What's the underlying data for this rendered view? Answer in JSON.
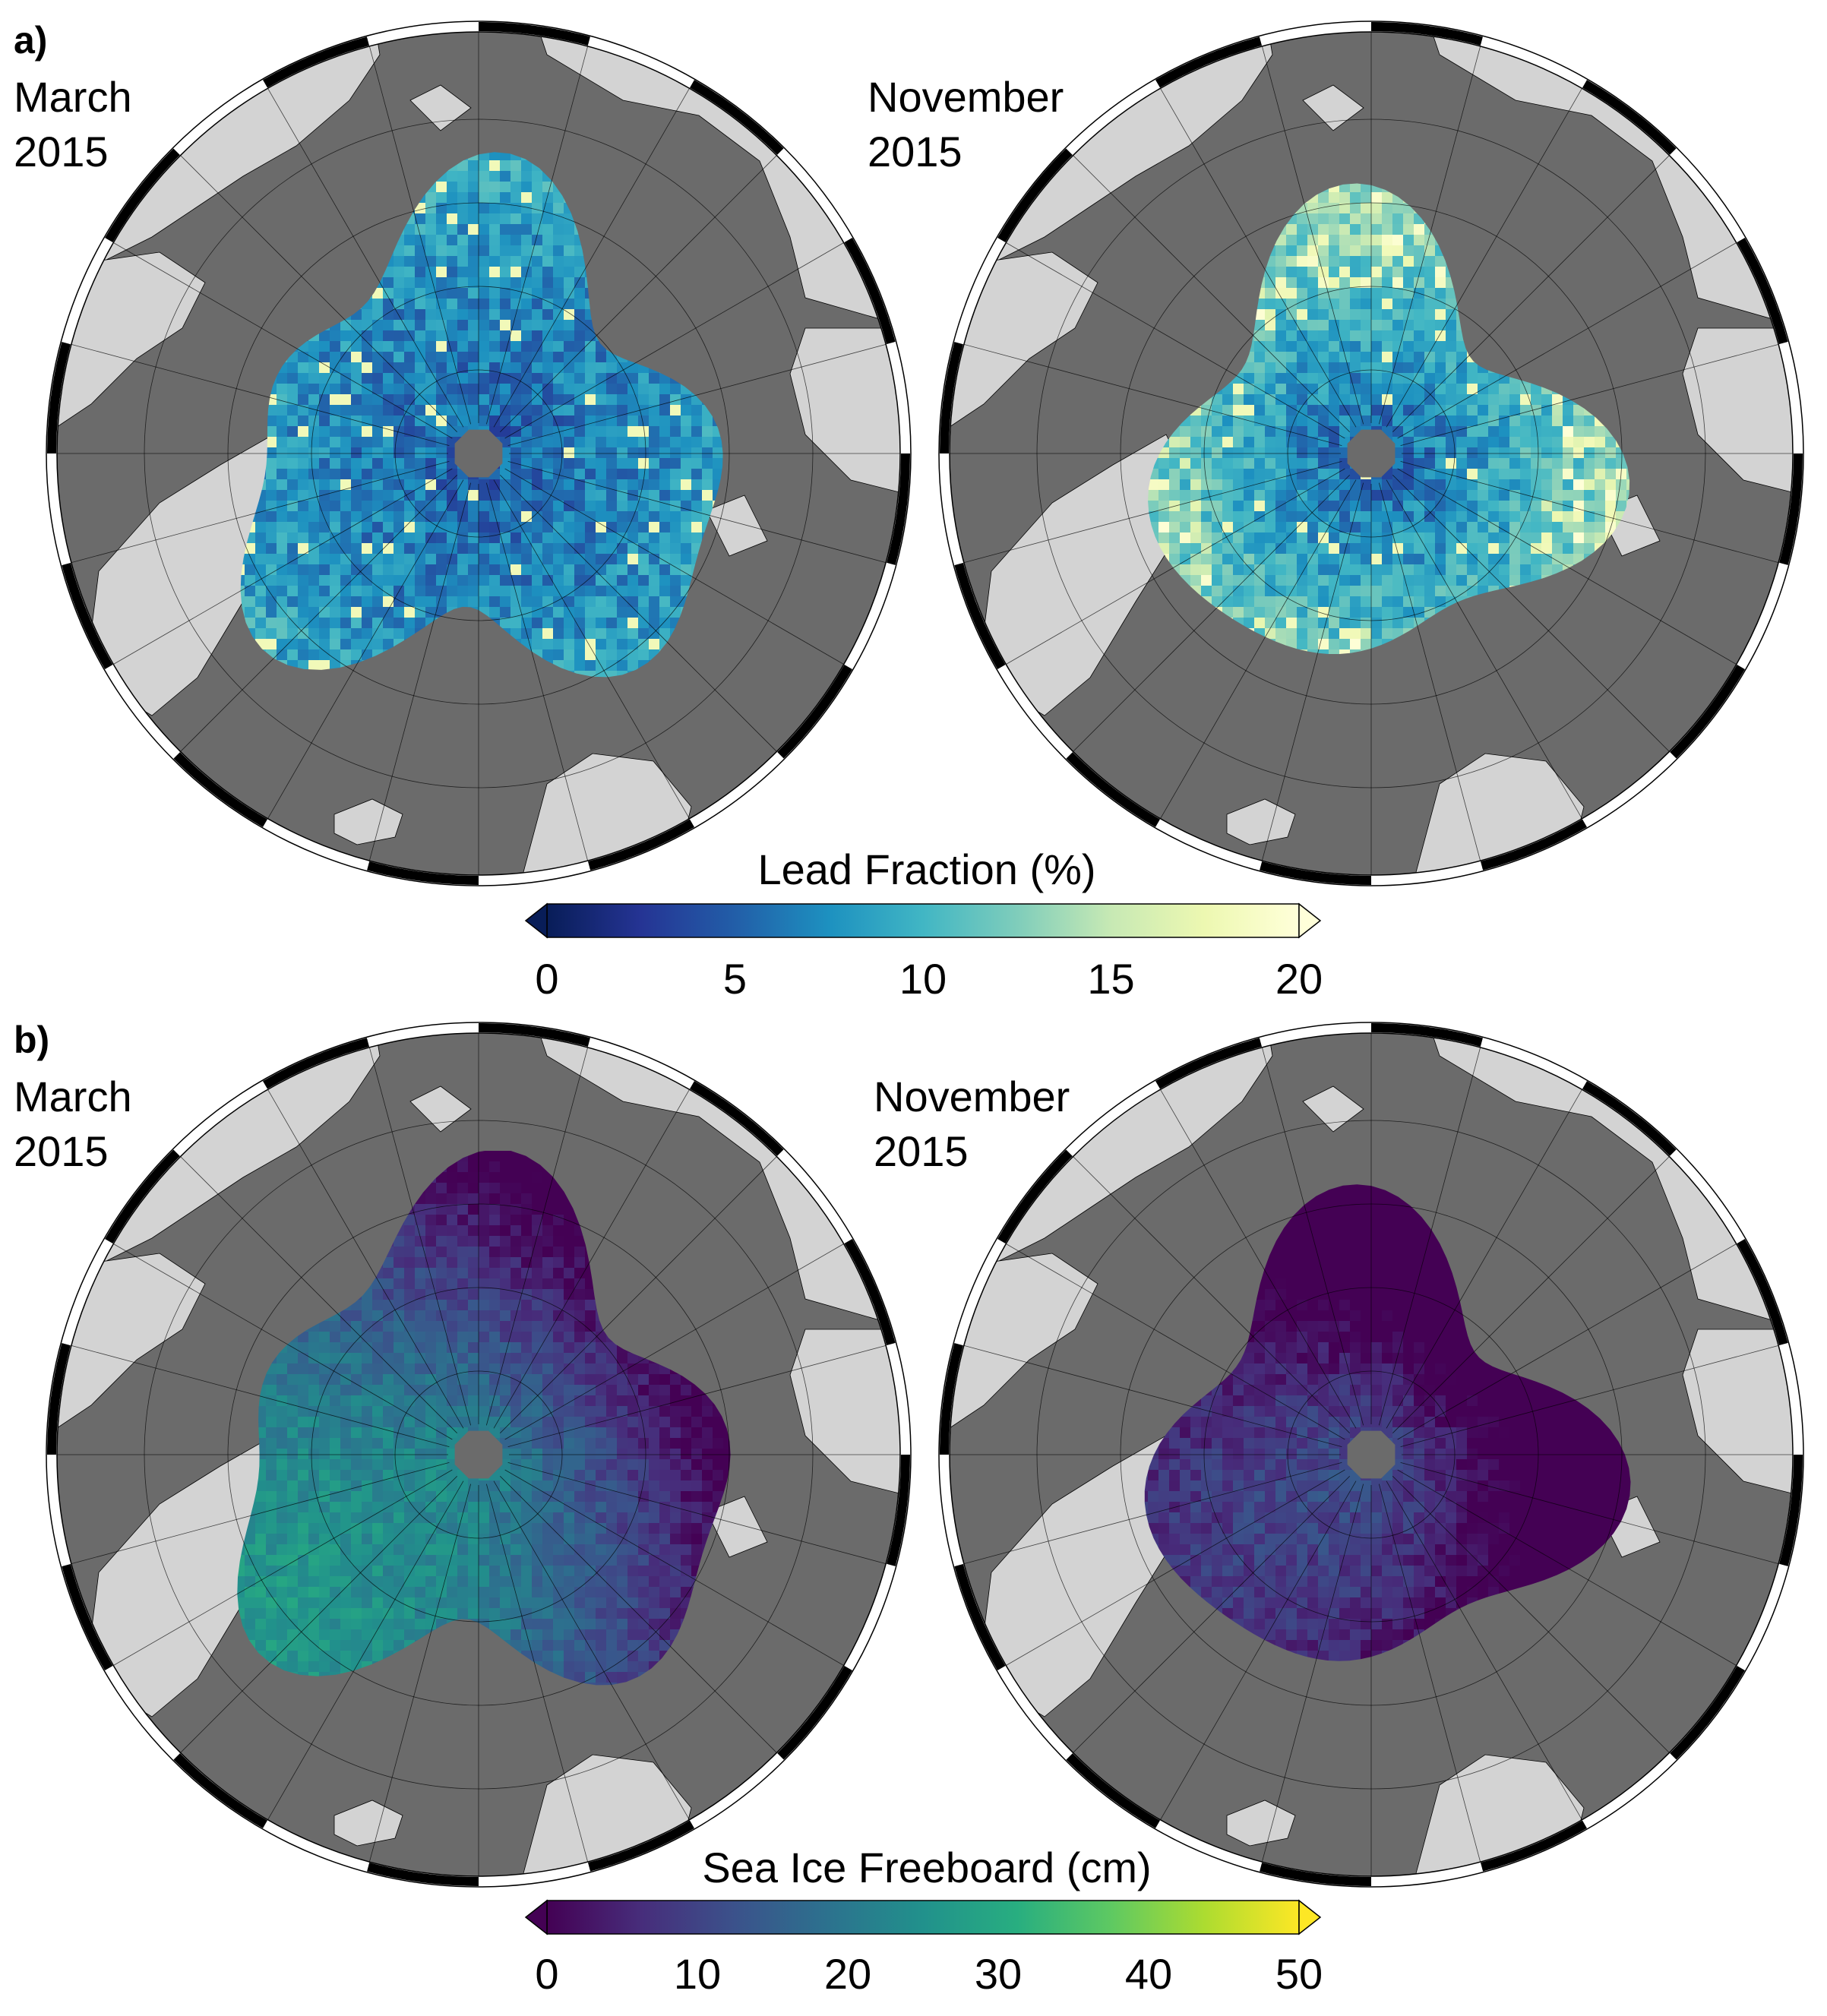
{
  "panels": [
    {
      "label": "a)",
      "maps": [
        {
          "title": "March\n2015",
          "variable": "lead"
        },
        {
          "title": "November\n2015",
          "variable": "lead"
        }
      ]
    },
    {
      "label": "b)",
      "maps": [
        {
          "title": "March\n2015",
          "variable": "freeboard"
        },
        {
          "title": "November\n2015",
          "variable": "freeboard"
        }
      ]
    }
  ],
  "colorbars": {
    "lead": {
      "title": "Lead Fraction (%)",
      "ticks": [
        "0",
        "5",
        "10",
        "15",
        "20"
      ],
      "range": [
        0,
        20
      ],
      "colors": [
        "#081d58",
        "#253494",
        "#225ea8",
        "#1d91c0",
        "#41b6c4",
        "#7fcdbb",
        "#c7e9b4",
        "#edf8b1",
        "#ffffd9"
      ]
    },
    "freeboard": {
      "title": "Sea Ice Freeboard (cm)",
      "ticks": [
        "0",
        "10",
        "20",
        "30",
        "40",
        "50"
      ],
      "range": [
        0,
        50
      ],
      "colors": [
        "#440154",
        "#472d7b",
        "#3b528b",
        "#2c728e",
        "#21918c",
        "#28ae80",
        "#5ec962",
        "#addc30",
        "#fde725"
      ]
    }
  },
  "map_colors": {
    "ocean": "#6b6b6b",
    "land": "#d3d3d3",
    "pole_hole": "#6b6b6b",
    "graticule": "#000000"
  }
}
